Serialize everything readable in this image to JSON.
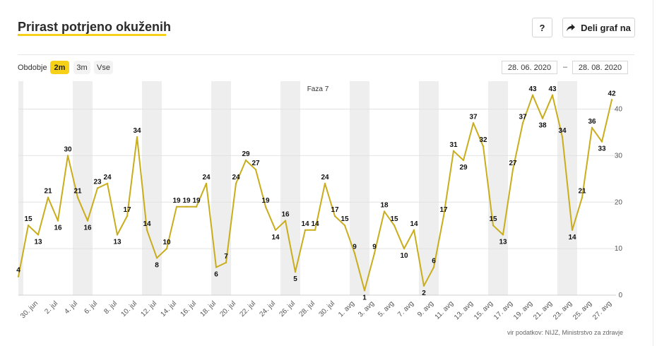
{
  "header": {
    "title": "Prirast potrjeno okuženih",
    "help_label": "?",
    "share_label": "Deli graf na"
  },
  "controls": {
    "period_label": "Obdobje",
    "periods": [
      "2m",
      "3m",
      "Vse"
    ],
    "active_period": "2m",
    "date_from": "28. 06. 2020",
    "date_separator": "–",
    "date_to": "28. 08. 2020"
  },
  "source": "vir podatkov: NIJZ, Ministrstvo za zdravje",
  "colors": {
    "accent": "#f7d117",
    "line": "#c9ad1c",
    "weekend_band": "#eeeeee"
  },
  "chart_data": {
    "type": "line",
    "start_date": "2020-06-28",
    "series": [
      {
        "values": [
          4,
          15,
          13,
          21,
          16,
          30,
          21,
          16,
          23,
          24,
          13,
          17,
          34,
          14,
          8,
          10,
          19,
          19,
          19,
          24,
          6,
          7,
          24,
          29,
          27,
          19,
          14,
          16,
          5,
          14,
          14,
          24,
          17,
          15,
          9,
          1,
          9,
          18,
          15,
          10,
          14,
          2,
          6,
          17,
          31,
          29,
          37,
          32,
          15,
          13,
          27,
          37,
          43,
          38,
          43,
          34,
          14,
          21,
          36,
          33,
          42
        ]
      }
    ],
    "x_tick_labels": [
      "30. jun",
      "2. jul",
      "4. jul",
      "6. jul",
      "8. jul",
      "10. jul",
      "12. jul",
      "14. jul",
      "16. jul",
      "18. jul",
      "20. jul",
      "22. jul",
      "24. jul",
      "26. jul",
      "28. jul",
      "30. jul",
      "1. avg",
      "3. avg",
      "5. avg",
      "7. avg",
      "9. avg",
      "11. avg",
      "13. avg",
      "15. avg",
      "17. avg",
      "19. avg",
      "21. avg",
      "23. avg",
      "25. avg",
      "27. avg"
    ],
    "y_ticks": [
      0,
      10,
      20,
      30,
      40
    ],
    "ylim": [
      0,
      46
    ],
    "annotation": "Faza 7",
    "grid": true,
    "weekend_bands": true,
    "data_labels": true
  }
}
